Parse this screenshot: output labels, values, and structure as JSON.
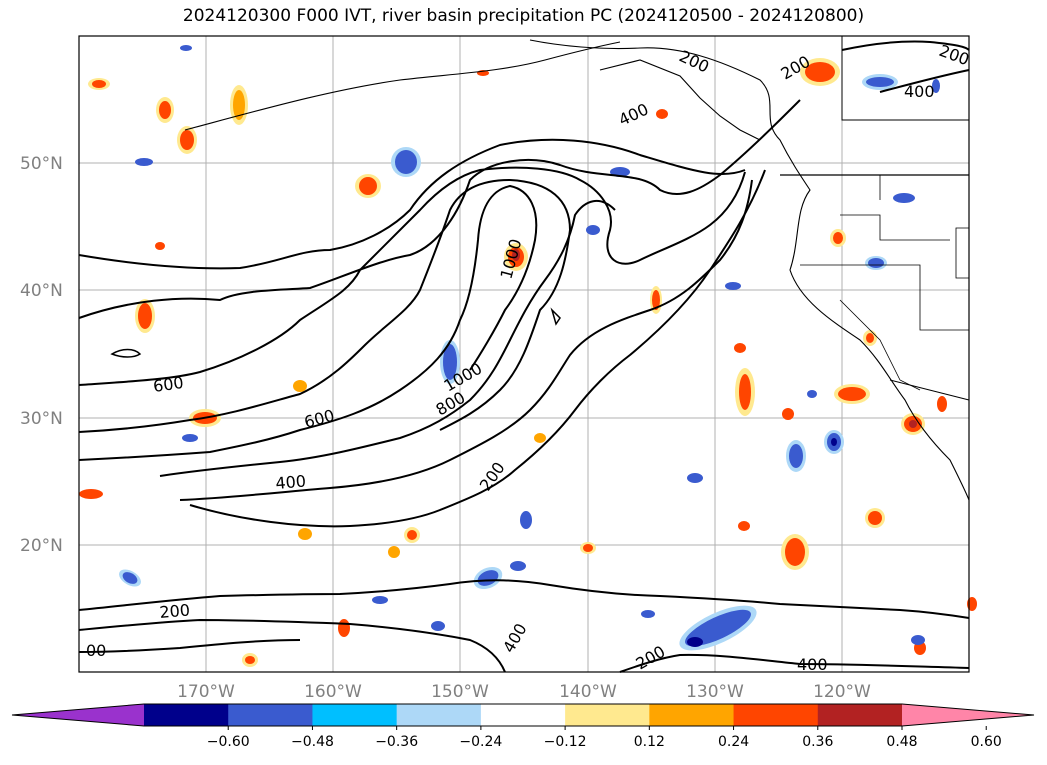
{
  "title": "2024120300 F000 IVT, river basin precipitation PC (2024120500 - 2024120800)",
  "lat_labels": [
    "50°N",
    "40°N",
    "30°N",
    "20°N"
  ],
  "lon_labels": [
    "170°W",
    "160°W",
    "150°W",
    "140°W",
    "130°W",
    "120°W"
  ],
  "contour_labels": [
    "200",
    "200",
    "400",
    "400",
    "1000",
    "1000",
    "800",
    "600",
    "600",
    "400",
    "200",
    "200",
    "400",
    "400",
    "200",
    "200",
    "00"
  ],
  "colorbar": {
    "colors": [
      "#9a32cd",
      "#00008b",
      "#3a5bcf",
      "#00bfff",
      "#add8f7",
      "#ffffff",
      "#ffe98f",
      "#ffa500",
      "#ff4500",
      "#b22222",
      "#ff85a8"
    ],
    "tick_labels": [
      "−0.60",
      "−0.48",
      "−0.36",
      "−0.24",
      "−0.12",
      "0.12",
      "0.24",
      "0.36",
      "0.48",
      "0.60"
    ]
  },
  "map_colors": {
    "contour": "#000000",
    "grid": "#b0b0b0",
    "positive": [
      "#ffe98f",
      "#ffa500",
      "#ff4500",
      "#b22222"
    ],
    "negative": [
      "#add8f7",
      "#00bfff",
      "#3a5bcf",
      "#00008b"
    ]
  }
}
